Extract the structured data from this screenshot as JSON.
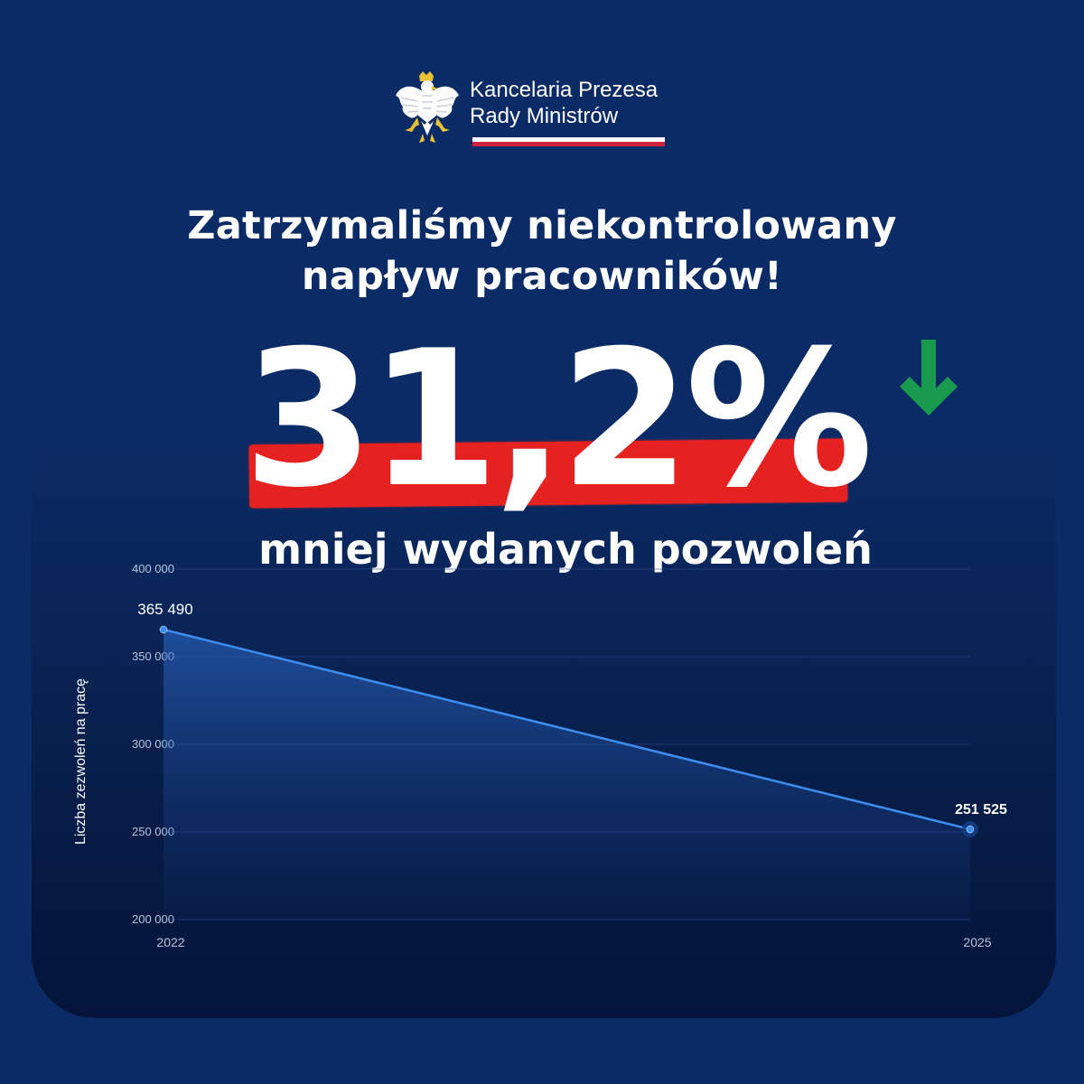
{
  "header": {
    "org_line1": "Kancelaria Prezesa",
    "org_line2": "Rady Ministrów",
    "emblem_icon": "polish-eagle-emblem"
  },
  "headline": {
    "line1": "Zatrzymaliśmy niekontrolowany",
    "line2": "napływ pracowników!"
  },
  "stat": {
    "value": "31,2%",
    "trend_icon": "arrow-down-icon",
    "trend_color": "#1a9a4f",
    "caption": "mniej wydanych pozwoleń"
  },
  "colors": {
    "background": "#0b2b66",
    "highlight_red": "#e5221f",
    "line": "#3d8ef0",
    "flag_red": "#d4213d"
  },
  "chart_data": {
    "type": "area",
    "x": [
      2022,
      2025
    ],
    "x_tick_labels": [
      "2022",
      "2025"
    ],
    "series": [
      {
        "values": [
          365490,
          251525
        ],
        "labels": [
          "365 490",
          "251 525"
        ]
      }
    ],
    "ylabel": "Liczba zezwoleń na pracę",
    "xlabel": "",
    "ylim": [
      200000,
      400000
    ],
    "y_ticks": [
      400000,
      350000,
      300000,
      250000,
      200000
    ],
    "y_tick_labels": [
      "400 000",
      "350 000",
      "300 000",
      "250 000",
      "200 000"
    ],
    "grid": true,
    "legend": "none"
  }
}
